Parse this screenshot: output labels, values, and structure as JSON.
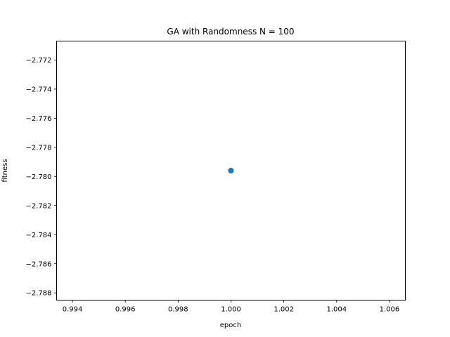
{
  "chart_data": {
    "type": "scatter",
    "title": "GA with Randomness N = 100",
    "xlabel": "epoch",
    "ylabel": "fitness",
    "x": [
      1.0
    ],
    "y": [
      -2.7796
    ],
    "xlim": [
      0.9934,
      1.0066
    ],
    "ylim": [
      -2.7885,
      -2.7707
    ],
    "xticks": [
      0.994,
      0.996,
      0.998,
      1.0,
      1.002,
      1.004,
      1.006
    ],
    "xtick_labels": [
      "0.994",
      "0.996",
      "0.998",
      "1.000",
      "1.002",
      "1.004",
      "1.006"
    ],
    "yticks": [
      -2.772,
      -2.774,
      -2.776,
      -2.778,
      -2.78,
      -2.782,
      -2.784,
      -2.786,
      -2.788
    ],
    "ytick_labels": [
      "−2.772",
      "−2.774",
      "−2.776",
      "−2.778",
      "−2.780",
      "−2.782",
      "−2.784",
      "−2.786",
      "−2.788"
    ],
    "grid": false,
    "marker_color": "#1f77b4"
  }
}
